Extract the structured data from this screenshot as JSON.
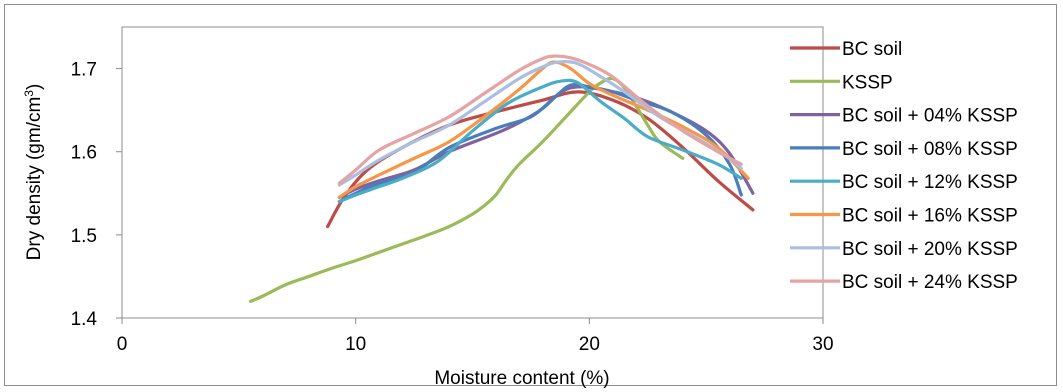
{
  "chart_data": {
    "type": "line",
    "title": "",
    "xlabel": "Moisture content (%)",
    "ylabel_main": "Dry  density (gm/cm",
    "ylabel_sup": "3",
    "ylabel_close": ")",
    "xlim": [
      0,
      30
    ],
    "ylim": [
      1.4,
      1.75
    ],
    "x_ticks": [
      "0",
      "10",
      "20",
      "30"
    ],
    "y_ticks": [
      "1.4",
      "1.5",
      "1.6",
      "1.7"
    ],
    "grid": false,
    "legend_position": "right",
    "series": [
      {
        "name": "BC soil",
        "color": "#be4b48",
        "x": [
          8.8,
          9.5,
          10.5,
          12,
          14,
          16,
          18,
          19.5,
          21,
          22.5,
          24,
          25.5,
          27
        ],
        "y": [
          1.51,
          1.545,
          1.578,
          1.605,
          1.632,
          1.648,
          1.662,
          1.672,
          1.662,
          1.64,
          1.605,
          1.565,
          1.53
        ]
      },
      {
        "name": "KSSP",
        "color": "#9bbb59",
        "x": [
          5.5,
          6,
          7,
          8,
          9,
          10,
          11,
          12,
          13,
          14,
          15,
          15.5,
          16,
          16.5,
          17,
          18,
          19,
          20,
          20.5,
          21,
          21.5,
          22,
          22.5,
          23,
          24
        ],
        "y": [
          1.42,
          1.426,
          1.44,
          1.45,
          1.46,
          1.469,
          1.479,
          1.489,
          1.499,
          1.51,
          1.525,
          1.535,
          1.548,
          1.568,
          1.585,
          1.612,
          1.642,
          1.672,
          1.683,
          1.688,
          1.677,
          1.655,
          1.632,
          1.612,
          1.592
        ]
      },
      {
        "name": "BC soil + 04% KSSP",
        "color": "#7f63a0",
        "x": [
          9.3,
          10,
          11,
          12.5,
          14,
          16,
          17,
          18,
          18.8,
          19.5,
          20.5,
          22,
          23.5,
          25,
          26,
          27
        ],
        "y": [
          1.545,
          1.555,
          1.565,
          1.578,
          1.6,
          1.622,
          1.635,
          1.652,
          1.672,
          1.678,
          1.675,
          1.665,
          1.648,
          1.625,
          1.598,
          1.55
        ]
      },
      {
        "name": "BC soil + 08% KSSP",
        "color": "#4a7ebb",
        "x": [
          9.3,
          10,
          11,
          12.5,
          14,
          16,
          17.5,
          18.5,
          19.2,
          20,
          21,
          22,
          23.5,
          25,
          26,
          26.5
        ],
        "y": [
          1.54,
          1.55,
          1.562,
          1.575,
          1.605,
          1.628,
          1.642,
          1.665,
          1.68,
          1.678,
          1.672,
          1.662,
          1.648,
          1.62,
          1.585,
          1.548
        ]
      },
      {
        "name": "BC soil + 12% KSSP",
        "color": "#4aacc6",
        "x": [
          9.3,
          10,
          11,
          12,
          13.5,
          15,
          16.5,
          18,
          18.8,
          19.5,
          20.5,
          21.5,
          22.5,
          24,
          25.5,
          26.5
        ],
        "y": [
          1.54,
          1.548,
          1.558,
          1.568,
          1.588,
          1.625,
          1.658,
          1.678,
          1.685,
          1.683,
          1.66,
          1.64,
          1.618,
          1.602,
          1.585,
          1.568
        ]
      },
      {
        "name": "BC soil + 16% KSSP",
        "color": "#f79646",
        "x": [
          9.3,
          10,
          11,
          12.5,
          14,
          15.5,
          17,
          18,
          18.5,
          19.2,
          20,
          21,
          22.5,
          24,
          25.5,
          26.8
        ],
        "y": [
          1.545,
          1.558,
          1.572,
          1.592,
          1.612,
          1.642,
          1.675,
          1.7,
          1.708,
          1.7,
          1.682,
          1.668,
          1.65,
          1.63,
          1.605,
          1.568
        ]
      },
      {
        "name": "BC soil + 20% KSSP",
        "color": "#a9bee1",
        "x": [
          9.3,
          10,
          11,
          12.5,
          14,
          15.5,
          17,
          18,
          18.7,
          19.5,
          20.5,
          21.5,
          23,
          24.5,
          26,
          26.5
        ],
        "y": [
          1.56,
          1.572,
          1.59,
          1.612,
          1.632,
          1.66,
          1.688,
          1.702,
          1.708,
          1.706,
          1.69,
          1.672,
          1.642,
          1.618,
          1.592,
          1.58
        ]
      },
      {
        "name": "BC soil + 24% KSSP",
        "color": "#e6a3a3",
        "x": [
          9.3,
          10,
          11,
          12.5,
          14,
          15.5,
          17,
          18,
          18.5,
          19.2,
          20,
          21,
          22.5,
          24,
          25.5,
          26.5
        ],
        "y": [
          1.562,
          1.578,
          1.602,
          1.622,
          1.642,
          1.67,
          1.698,
          1.712,
          1.715,
          1.713,
          1.705,
          1.69,
          1.655,
          1.625,
          1.6,
          1.585
        ]
      }
    ]
  }
}
